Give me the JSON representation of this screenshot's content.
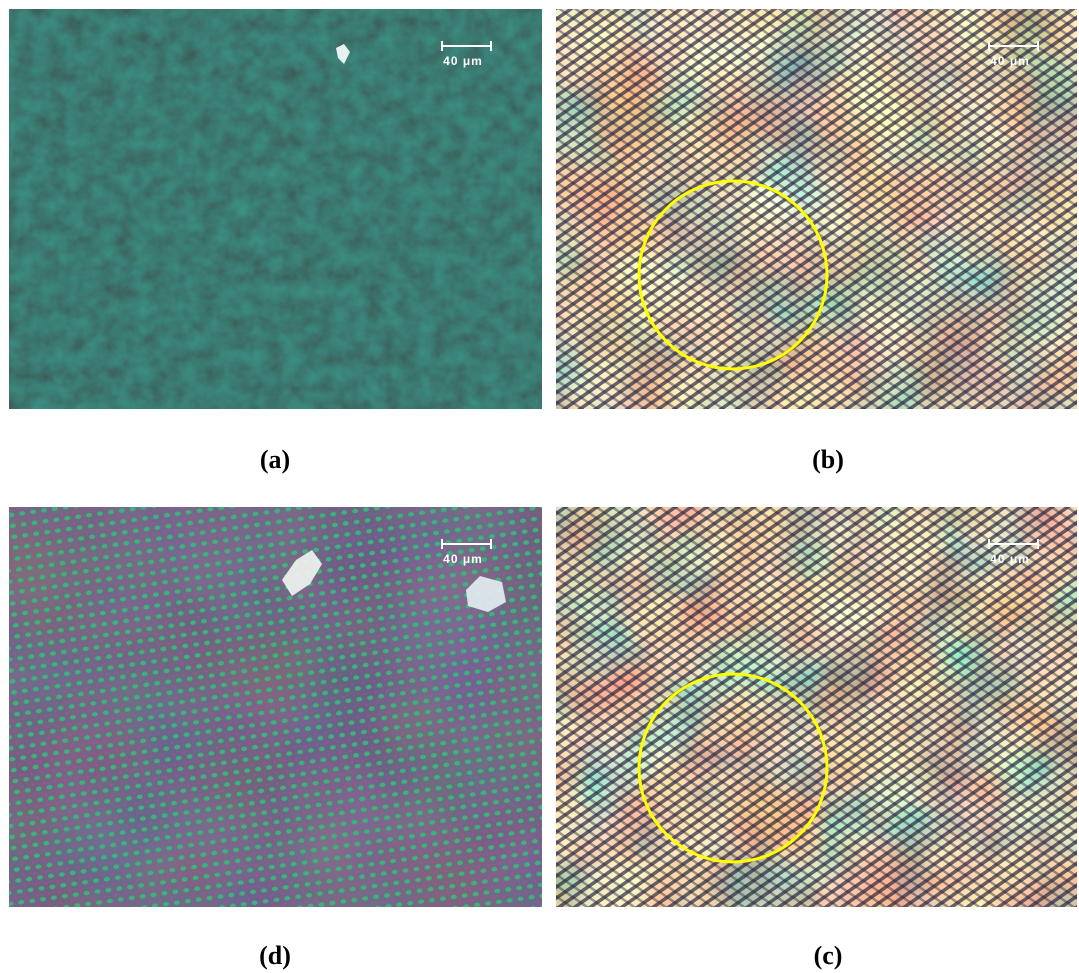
{
  "panels": [
    {
      "label": "(a)",
      "scale_bar": "40 μm"
    },
    {
      "label": "(b)",
      "scale_bar": "40 μm"
    },
    {
      "label": "(d)",
      "scale_bar": "40 μm"
    },
    {
      "label": "(c)",
      "scale_bar": "40 μm"
    }
  ]
}
